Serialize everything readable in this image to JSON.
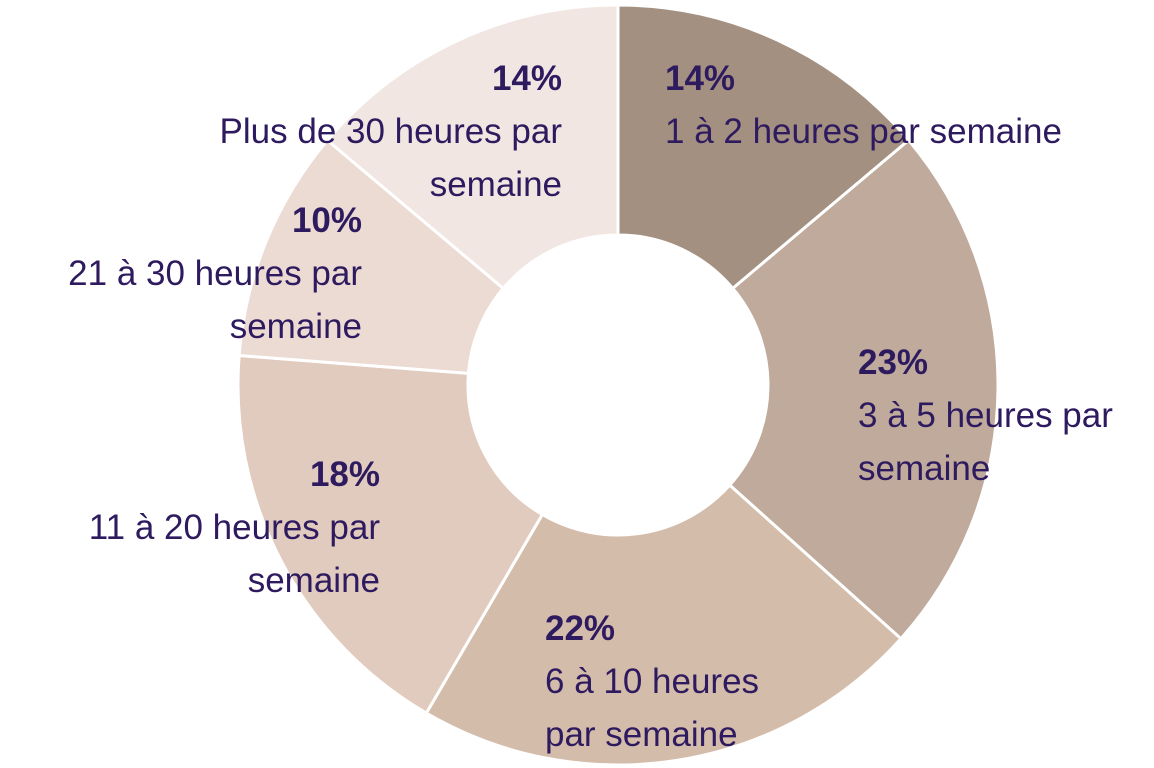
{
  "chart_data": {
    "type": "donut",
    "categories": [
      "1 à 2 heures par semaine",
      "3 à 5 heures par semaine",
      "6 à 10 heures par semaine",
      "11 à 20 heures par semaine",
      "21 à 30 heures par semaine",
      "Plus de 30 heures par semaine"
    ],
    "values": [
      14,
      23,
      22,
      18,
      10,
      14
    ],
    "value_labels": [
      "14%",
      "23%",
      "22%",
      "18%",
      "10%",
      "14%"
    ],
    "colors": [
      "#a39081",
      "#bfaa9c",
      "#d4bcab",
      "#e1cbbe",
      "#ecdbd3",
      "#f1e6e1"
    ]
  }
}
